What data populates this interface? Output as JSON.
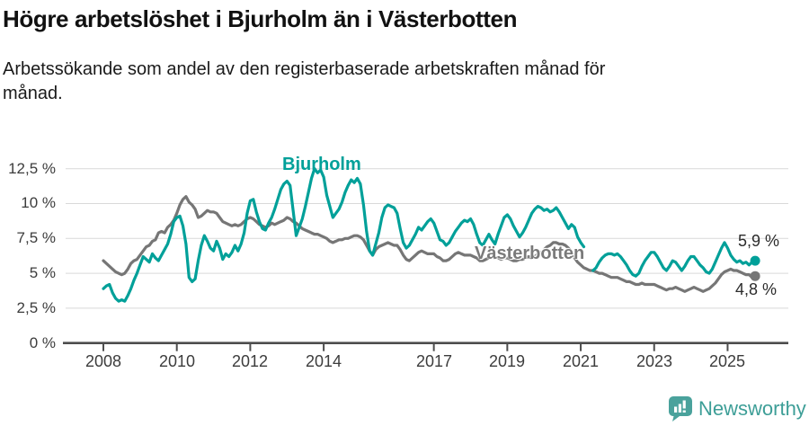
{
  "chart_data": {
    "type": "line",
    "title": "Högre arbetslöshet i Bjurholm än i Västerbotten",
    "subtitle_lines": [
      "Arbetssökande som andel av den registerbaserade arbetskraften månad för",
      "månad."
    ],
    "x_start": "2008-01",
    "x_end": "2025-10",
    "x_interval": "monthly",
    "grid": true,
    "ylim": [
      0,
      13.2
    ],
    "y_ticks": [
      "0 %",
      "2,5 %",
      "5 %",
      "7,5 %",
      "10 %",
      "12,5 %"
    ],
    "y_tick_values": [
      0,
      2.5,
      5,
      7.5,
      10,
      12.5
    ],
    "x_ticks": [
      "2008",
      "2010",
      "2012",
      "2014",
      "2017",
      "2019",
      "2021",
      "2023",
      "2025"
    ],
    "x_tick_years": [
      2008,
      2010,
      2012,
      2014,
      2017,
      2019,
      2021,
      2023,
      2025
    ],
    "style": {
      "grid_color": "#d9d9d9",
      "axis_color": "#4d4d4d",
      "line_width": 3.2,
      "end_dot_radius": 5.5
    },
    "series": [
      {
        "name": "Bjurholm",
        "color": "#00a099",
        "end_label": "5,9 %",
        "values": [
          3.9,
          4.1,
          4.2,
          3.6,
          3.2,
          3.0,
          3.1,
          3.0,
          3.4,
          3.9,
          4.5,
          5.0,
          5.6,
          6.2,
          6.0,
          5.8,
          6.4,
          6.1,
          5.9,
          6.3,
          6.7,
          7.1,
          7.8,
          8.7,
          9.0,
          9.1,
          8.4,
          7.1,
          4.7,
          4.4,
          4.6,
          5.9,
          7.0,
          7.7,
          7.3,
          6.8,
          6.6,
          7.3,
          6.8,
          6.0,
          6.4,
          6.2,
          6.5,
          7.0,
          6.6,
          7.1,
          7.9,
          9.3,
          10.2,
          10.3,
          9.4,
          8.7,
          8.2,
          8.1,
          8.6,
          9.0,
          9.6,
          10.3,
          11.0,
          11.4,
          11.6,
          11.3,
          9.5,
          7.7,
          8.3,
          8.9,
          9.8,
          10.8,
          11.8,
          12.5,
          12.2,
          12.4,
          11.9,
          10.6,
          9.8,
          9.0,
          9.3,
          9.6,
          10.1,
          10.8,
          11.3,
          11.7,
          11.5,
          11.8,
          11.4,
          9.9,
          8.0,
          6.6,
          6.3,
          7.1,
          7.9,
          9.0,
          9.7,
          9.9,
          9.8,
          9.7,
          9.3,
          8.2,
          7.2,
          6.8,
          7.0,
          7.4,
          7.8,
          8.3,
          8.1,
          8.4,
          8.7,
          8.9,
          8.6,
          8.0,
          7.4,
          7.3,
          7.0,
          7.2,
          7.6,
          8.0,
          8.3,
          8.6,
          8.8,
          8.7,
          8.9,
          8.5,
          7.8,
          7.2,
          7.0,
          7.4,
          7.8,
          7.4,
          7.1,
          7.8,
          8.4,
          9.0,
          9.2,
          8.9,
          8.4,
          8.0,
          7.6,
          7.9,
          8.3,
          8.8,
          9.3,
          9.6,
          9.8,
          9.7,
          9.5,
          9.6,
          9.4,
          9.5,
          9.7,
          9.4,
          9.0,
          8.6,
          8.2,
          8.5,
          8.3,
          7.6,
          7.2,
          6.9,
          null,
          null,
          5.2,
          5.4,
          5.8,
          6.1,
          6.3,
          6.4,
          6.4,
          6.3,
          6.4,
          6.2,
          5.9,
          5.6,
          5.2,
          4.9,
          4.8,
          5.0,
          5.5,
          5.9,
          6.2,
          6.5,
          6.5,
          6.2,
          5.8,
          5.4,
          5.2,
          5.5,
          5.9,
          5.8,
          5.5,
          5.2,
          5.5,
          5.9,
          6.2,
          6.2,
          5.9,
          5.6,
          5.4,
          5.1,
          5.0,
          5.3,
          5.8,
          6.3,
          6.8,
          7.2,
          6.8,
          6.3,
          6.0,
          5.8,
          5.9,
          5.7,
          5.8,
          5.6,
          5.8,
          5.9
        ]
      },
      {
        "name": "Västerbotten",
        "color": "#767676",
        "end_label": "4,8 %",
        "values": [
          5.9,
          5.7,
          5.5,
          5.3,
          5.1,
          5.0,
          4.9,
          5.0,
          5.3,
          5.7,
          5.9,
          6.0,
          6.3,
          6.6,
          6.9,
          7.0,
          7.3,
          7.4,
          7.9,
          8.0,
          7.9,
          8.3,
          8.5,
          8.8,
          9.3,
          9.9,
          10.3,
          10.5,
          10.1,
          9.9,
          9.6,
          9.0,
          9.1,
          9.3,
          9.5,
          9.4,
          9.4,
          9.3,
          9.0,
          8.7,
          8.6,
          8.5,
          8.4,
          8.5,
          8.4,
          8.5,
          8.7,
          8.9,
          9.0,
          8.9,
          8.7,
          8.5,
          8.4,
          8.3,
          8.4,
          8.6,
          8.5,
          8.6,
          8.7,
          8.8,
          9.0,
          8.9,
          8.7,
          8.6,
          8.4,
          8.2,
          8.1,
          8.0,
          7.9,
          7.8,
          7.8,
          7.7,
          7.6,
          7.5,
          7.3,
          7.2,
          7.3,
          7.4,
          7.4,
          7.5,
          7.5,
          7.6,
          7.7,
          7.7,
          7.6,
          7.4,
          7.0,
          6.6,
          6.3,
          6.7,
          6.9,
          7.0,
          7.1,
          7.2,
          7.1,
          7.0,
          7.0,
          6.7,
          6.3,
          6.0,
          5.9,
          6.1,
          6.3,
          6.5,
          6.6,
          6.5,
          6.4,
          6.4,
          6.4,
          6.2,
          6.1,
          5.9,
          5.9,
          6.0,
          6.2,
          6.4,
          6.5,
          6.4,
          6.3,
          6.3,
          6.3,
          6.2,
          6.1,
          5.9,
          5.9,
          6.0,
          6.1,
          6.2,
          6.1,
          6.1,
          6.0,
          6.1,
          6.1,
          6.0,
          5.9,
          5.9,
          6.0,
          6.0,
          6.1,
          6.2,
          6.1,
          6.2,
          6.4,
          6.5,
          6.7,
          6.9,
          7.0,
          7.2,
          7.2,
          7.1,
          7.1,
          7.0,
          6.8,
          6.5,
          6.1,
          5.8,
          5.6,
          5.4,
          5.3,
          5.2,
          5.2,
          5.1,
          5.0,
          5.0,
          4.9,
          4.8,
          4.7,
          4.7,
          4.7,
          4.6,
          4.5,
          4.4,
          4.4,
          4.3,
          4.2,
          4.2,
          4.3,
          4.2,
          4.2,
          4.2,
          4.2,
          4.1,
          4.0,
          3.9,
          3.8,
          3.9,
          3.9,
          4.0,
          3.9,
          3.8,
          3.7,
          3.8,
          3.9,
          4.0,
          3.9,
          3.8,
          3.7,
          3.8,
          3.9,
          4.1,
          4.3,
          4.6,
          4.9,
          5.1,
          5.2,
          5.3,
          5.2,
          5.2,
          5.1,
          5.0,
          4.9,
          4.9,
          4.7,
          4.8
        ]
      }
    ]
  },
  "annotations": {
    "bjurholm_label": "Bjurholm",
    "vasterbotten_label": "Västerbotten",
    "bjurholm_end_value": "5,9 %",
    "vasterbotten_end_value": "4,8 %"
  },
  "footer": {
    "brand": "Newsworthy",
    "logo_color": "#4aa29c"
  }
}
